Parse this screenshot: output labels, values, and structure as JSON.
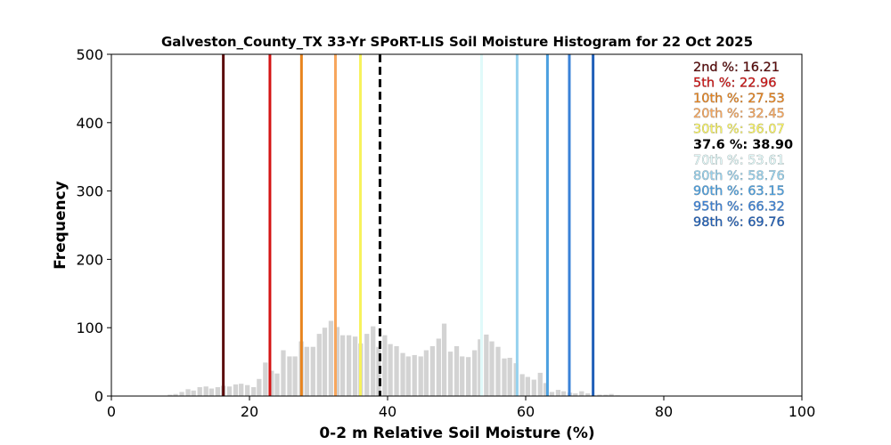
{
  "chart_data": {
    "type": "bar",
    "title": "Galveston_County_TX 33-Yr SPoRT-LIS Soil Moisture Histogram for 22 Oct 2025",
    "xlabel": "0-2 m Relative Soil Moisture (%)",
    "ylabel": "Frequency",
    "xlim": [
      0,
      100
    ],
    "ylim": [
      0,
      500
    ],
    "xticks": [
      "0",
      "20",
      "40",
      "60",
      "80",
      "100"
    ],
    "yticks": [
      "0",
      "100",
      "200",
      "300",
      "400",
      "500"
    ],
    "bar_color": "#d3d3d3",
    "bins": [
      {
        "x": 8.5,
        "v": 2
      },
      {
        "x": 9.3,
        "v": 3
      },
      {
        "x": 10.2,
        "v": 6
      },
      {
        "x": 11.1,
        "v": 10
      },
      {
        "x": 11.9,
        "v": 8
      },
      {
        "x": 12.8,
        "v": 13
      },
      {
        "x": 13.7,
        "v": 14
      },
      {
        "x": 14.5,
        "v": 11
      },
      {
        "x": 15.4,
        "v": 13
      },
      {
        "x": 16.2,
        "v": 15
      },
      {
        "x": 17.1,
        "v": 14
      },
      {
        "x": 18.0,
        "v": 17
      },
      {
        "x": 18.8,
        "v": 18
      },
      {
        "x": 19.7,
        "v": 16
      },
      {
        "x": 20.6,
        "v": 13
      },
      {
        "x": 21.4,
        "v": 25
      },
      {
        "x": 22.3,
        "v": 49
      },
      {
        "x": 23.2,
        "v": 37
      },
      {
        "x": 24.0,
        "v": 33
      },
      {
        "x": 24.9,
        "v": 67
      },
      {
        "x": 25.8,
        "v": 58
      },
      {
        "x": 26.6,
        "v": 58
      },
      {
        "x": 27.5,
        "v": 80
      },
      {
        "x": 28.3,
        "v": 72
      },
      {
        "x": 29.2,
        "v": 72
      },
      {
        "x": 30.1,
        "v": 91
      },
      {
        "x": 30.9,
        "v": 100
      },
      {
        "x": 31.8,
        "v": 110
      },
      {
        "x": 32.7,
        "v": 101
      },
      {
        "x": 33.5,
        "v": 89
      },
      {
        "x": 34.4,
        "v": 89
      },
      {
        "x": 35.3,
        "v": 87
      },
      {
        "x": 36.1,
        "v": 77
      },
      {
        "x": 37.0,
        "v": 91
      },
      {
        "x": 37.9,
        "v": 102
      },
      {
        "x": 38.7,
        "v": 72
      },
      {
        "x": 39.6,
        "v": 89
      },
      {
        "x": 40.4,
        "v": 76
      },
      {
        "x": 41.3,
        "v": 73
      },
      {
        "x": 42.2,
        "v": 63
      },
      {
        "x": 43.0,
        "v": 58
      },
      {
        "x": 43.9,
        "v": 60
      },
      {
        "x": 44.8,
        "v": 58
      },
      {
        "x": 45.6,
        "v": 67
      },
      {
        "x": 46.5,
        "v": 73
      },
      {
        "x": 47.4,
        "v": 84
      },
      {
        "x": 48.2,
        "v": 106
      },
      {
        "x": 49.1,
        "v": 65
      },
      {
        "x": 50.0,
        "v": 73
      },
      {
        "x": 50.8,
        "v": 58
      },
      {
        "x": 51.7,
        "v": 57
      },
      {
        "x": 52.6,
        "v": 67
      },
      {
        "x": 53.4,
        "v": 83
      },
      {
        "x": 54.3,
        "v": 90
      },
      {
        "x": 55.1,
        "v": 80
      },
      {
        "x": 56.0,
        "v": 72
      },
      {
        "x": 56.9,
        "v": 55
      },
      {
        "x": 57.7,
        "v": 56
      },
      {
        "x": 58.6,
        "v": 48
      },
      {
        "x": 59.5,
        "v": 32
      },
      {
        "x": 60.3,
        "v": 28
      },
      {
        "x": 61.2,
        "v": 24
      },
      {
        "x": 62.1,
        "v": 34
      },
      {
        "x": 62.9,
        "v": 19
      },
      {
        "x": 63.8,
        "v": 6
      },
      {
        "x": 64.7,
        "v": 9
      },
      {
        "x": 65.5,
        "v": 7
      },
      {
        "x": 66.4,
        "v": 5
      },
      {
        "x": 67.2,
        "v": 4
      },
      {
        "x": 68.1,
        "v": 7
      },
      {
        "x": 69.0,
        "v": 4
      },
      {
        "x": 69.8,
        "v": 1
      },
      {
        "x": 70.7,
        "v": 2
      },
      {
        "x": 71.6,
        "v": 2
      },
      {
        "x": 72.4,
        "v": 3
      },
      {
        "x": 73.3,
        "v": 1
      }
    ],
    "percentile_lines": [
      {
        "label": "2nd %: 16.21",
        "value": 16.21,
        "color": "#5c0a0a",
        "style": "solid"
      },
      {
        "label": "5th %: 22.96",
        "value": 22.96,
        "color": "#d41414",
        "style": "solid"
      },
      {
        "label": "10th %: 27.53",
        "value": 27.53,
        "color": "#e8841e",
        "style": "solid"
      },
      {
        "label": "20th %: 32.45",
        "value": 32.45,
        "color": "#f7a65c",
        "style": "solid"
      },
      {
        "label": "30th %: 36.07",
        "value": 36.07,
        "color": "#f7f25c",
        "style": "solid"
      },
      {
        "label": "37.6 %: 38.90",
        "value": 38.9,
        "color": "#000000",
        "style": "dashed"
      },
      {
        "label": "70th %: 53.61",
        "value": 53.61,
        "color": "#e0fafa",
        "style": "solid"
      },
      {
        "label": "80th %: 58.76",
        "value": 58.76,
        "color": "#96d2ee",
        "style": "solid"
      },
      {
        "label": "90th %: 63.15",
        "value": 63.15,
        "color": "#4ba0e0",
        "style": "solid"
      },
      {
        "label": "95th %: 66.32",
        "value": 66.32,
        "color": "#3a82d8",
        "style": "solid"
      },
      {
        "label": "98th %: 69.76",
        "value": 69.76,
        "color": "#1f5fb8",
        "style": "solid"
      }
    ]
  }
}
